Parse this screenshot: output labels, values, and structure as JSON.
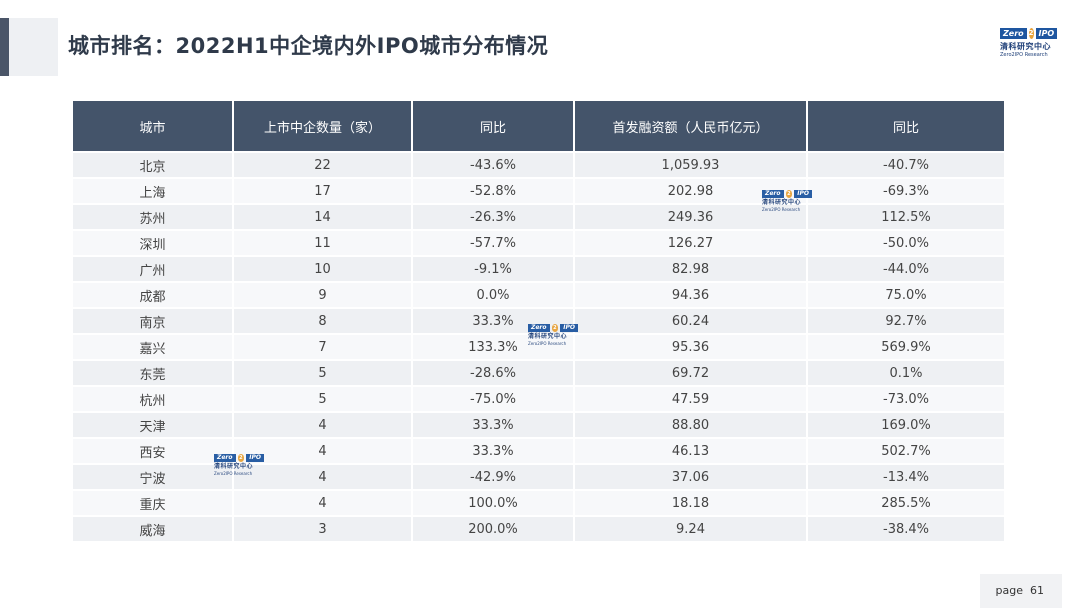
{
  "title": "城市排名：2022H1中企境内外IPO城市分布情况",
  "logo": {
    "brand_left": "Zero",
    "brand_mid": "2",
    "brand_right": "IPO",
    "name_cn": "清科研究中心",
    "name_en": "Zero2IPO Research"
  },
  "table": {
    "headers": [
      "城市",
      "上市中企数量（家）",
      "同比",
      "首发融资额（人民币亿元）",
      "同比"
    ],
    "rows": [
      [
        "北京",
        "22",
        "-43.6%",
        "1,059.93",
        "-40.7%"
      ],
      [
        "上海",
        "17",
        "-52.8%",
        "202.98",
        "-69.3%"
      ],
      [
        "苏州",
        "14",
        "-26.3%",
        "249.36",
        "112.5%"
      ],
      [
        "深圳",
        "11",
        "-57.7%",
        "126.27",
        "-50.0%"
      ],
      [
        "广州",
        "10",
        "-9.1%",
        "82.98",
        "-44.0%"
      ],
      [
        "成都",
        "9",
        "0.0%",
        "94.36",
        "75.0%"
      ],
      [
        "南京",
        "8",
        "33.3%",
        "60.24",
        "92.7%"
      ],
      [
        "嘉兴",
        "7",
        "133.3%",
        "95.36",
        "569.9%"
      ],
      [
        "东莞",
        "5",
        "-28.6%",
        "69.72",
        "0.1%"
      ],
      [
        "杭州",
        "5",
        "-75.0%",
        "47.59",
        "-73.0%"
      ],
      [
        "天津",
        "4",
        "33.3%",
        "88.80",
        "169.0%"
      ],
      [
        "西安",
        "4",
        "33.3%",
        "46.13",
        "502.7%"
      ],
      [
        "宁波",
        "4",
        "-42.9%",
        "37.06",
        "-13.4%"
      ],
      [
        "重庆",
        "4",
        "100.0%",
        "18.18",
        "285.5%"
      ],
      [
        "威海",
        "3",
        "200.0%",
        "9.24",
        "-38.4%"
      ]
    ]
  },
  "page": {
    "label": "page",
    "number": "61"
  }
}
